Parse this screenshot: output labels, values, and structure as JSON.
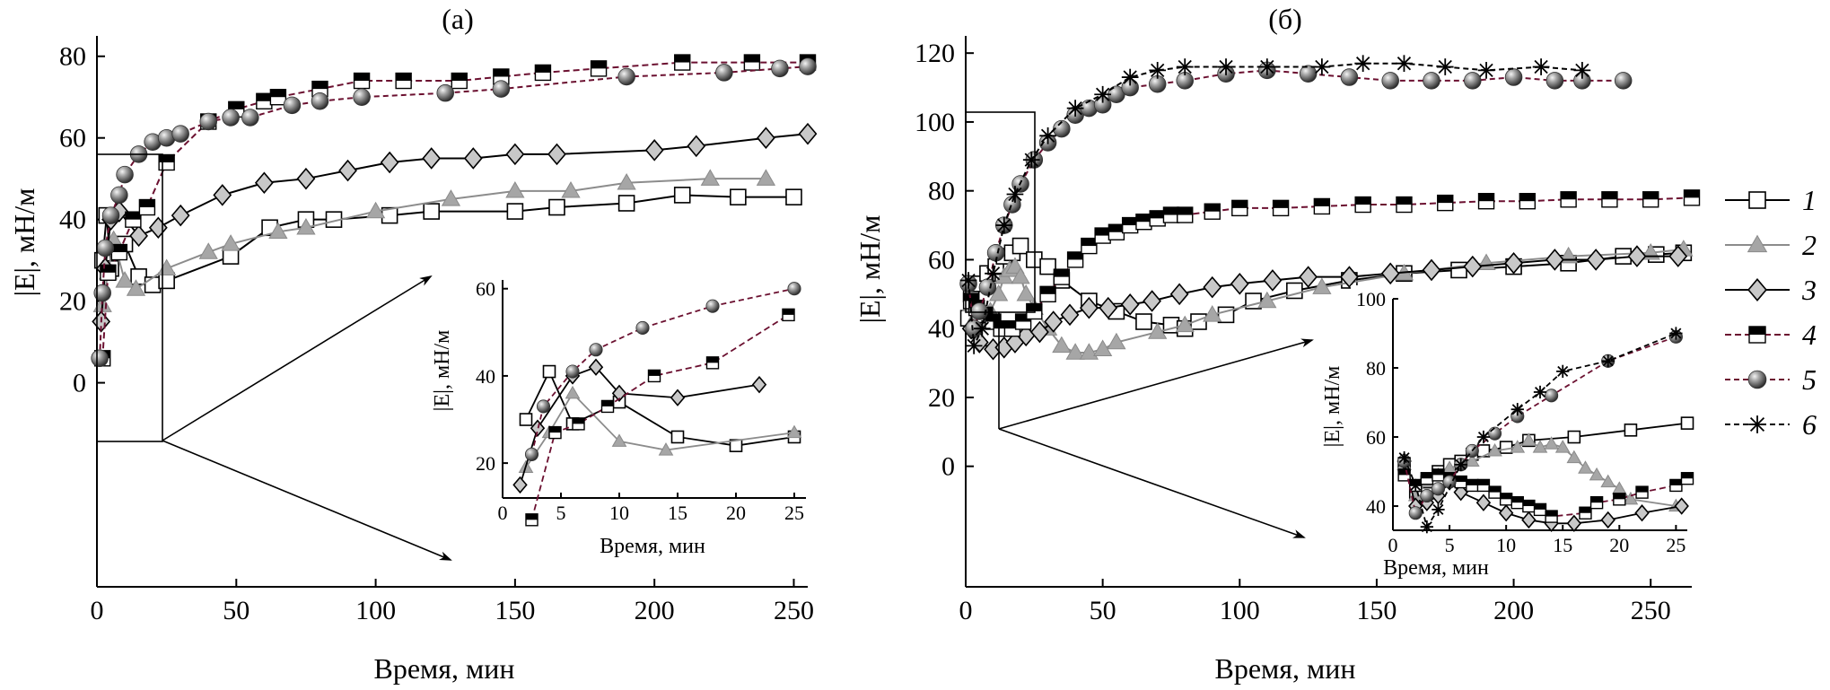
{
  "chart_data": [
    {
      "id": "a",
      "type": "scatter-line",
      "title": "(а)",
      "xlabel": "Время, мин",
      "ylabel": "|E|, мН/м",
      "xlim": [
        0,
        255
      ],
      "ylim": [
        -50,
        85
      ],
      "xticks": [
        0,
        50,
        100,
        150,
        200,
        250
      ],
      "yticks": [
        0,
        20,
        40,
        60,
        80
      ],
      "series": [
        {
          "name": "1",
          "x": [
            2,
            3.5,
            5,
            10,
            15,
            20,
            25,
            48,
            62,
            75,
            85,
            105,
            120,
            150,
            165,
            190,
            210,
            230,
            250
          ],
          "y": [
            30,
            41,
            28,
            34,
            26,
            24,
            25,
            31,
            38,
            40,
            40,
            41,
            42,
            42,
            43,
            44,
            46,
            45.5,
            45.5
          ]
        },
        {
          "name": "2",
          "x": [
            2,
            4,
            6,
            10,
            14,
            25,
            40,
            48,
            65,
            75,
            100,
            127,
            150,
            170,
            190,
            220,
            240
          ],
          "y": [
            19,
            27,
            35,
            25,
            23,
            28,
            32,
            34,
            37,
            38,
            42,
            45,
            47,
            47,
            49,
            50,
            50
          ]
        },
        {
          "name": "3",
          "x": [
            1.5,
            3,
            5,
            8,
            15,
            22,
            30,
            45,
            60,
            75,
            90,
            105,
            120,
            135,
            150,
            165,
            200,
            215,
            240,
            255
          ],
          "y": [
            15,
            28,
            40,
            42,
            36,
            38,
            41,
            46,
            49,
            50,
            52,
            54,
            55,
            55,
            56,
            56,
            57,
            58,
            60,
            61
          ]
        },
        {
          "name": "4",
          "x": [
            2,
            4,
            8,
            13,
            18,
            25,
            40,
            50,
            60,
            65,
            80,
            95,
            110,
            130,
            145,
            160,
            180,
            210,
            235,
            255
          ],
          "y": [
            6,
            27,
            32,
            40,
            43,
            54,
            64,
            67,
            69,
            70,
            72,
            74,
            74,
            74,
            75,
            76,
            77,
            78.5,
            78.5,
            78.5
          ]
        },
        {
          "name": "5",
          "x": [
            1,
            2,
            3,
            5,
            8,
            10,
            15,
            20,
            25,
            30,
            40,
            48,
            55,
            70,
            80,
            95,
            125,
            145,
            190,
            225,
            245,
            255
          ],
          "y": [
            6,
            22,
            33,
            41,
            46,
            51,
            56,
            59,
            60,
            61,
            64,
            65,
            65,
            68,
            69,
            70,
            71,
            72,
            75,
            76,
            77,
            77.5
          ]
        }
      ],
      "inset": {
        "xlabel": "Время, мин",
        "ylabel": "|E|, мН/м",
        "xlim": [
          0,
          26
        ],
        "ylim": [
          12,
          62
        ],
        "xticks": [
          0,
          5,
          10,
          15,
          20,
          25
        ],
        "yticks": [
          20,
          40,
          60
        ],
        "series": [
          {
            "name": "1",
            "x": [
              2,
              4,
              6,
              10,
              15,
              20,
              25
            ],
            "y": [
              30,
              41,
              29,
              34,
              26,
              24,
              26
            ]
          },
          {
            "name": "2",
            "x": [
              2,
              4,
              6,
              10,
              14,
              25
            ],
            "y": [
              19,
              27,
              36,
              25,
              23,
              27
            ]
          },
          {
            "name": "3",
            "x": [
              1.5,
              3,
              6,
              8,
              10,
              15,
              22
            ],
            "y": [
              15,
              28,
              40,
              42,
              36,
              35,
              38
            ]
          },
          {
            "name": "4",
            "x": [
              2.5,
              4.5,
              6.5,
              9,
              13,
              18,
              24.5
            ],
            "y": [
              7,
              27,
              29,
              33,
              40,
              43,
              54
            ]
          },
          {
            "name": "5",
            "x": [
              2.5,
              3.5,
              6,
              8,
              12,
              18,
              25
            ],
            "y": [
              22,
              33,
              41,
              46,
              51,
              56,
              60
            ]
          }
        ]
      }
    },
    {
      "id": "b",
      "type": "scatter-line",
      "title": "(б)",
      "xlabel": "Время, мин",
      "ylabel": "|E|, мН/м",
      "xlim": [
        0,
        265
      ],
      "ylim": [
        -35,
        125
      ],
      "xticks": [
        0,
        50,
        100,
        150,
        200,
        250
      ],
      "yticks": [
        0,
        20,
        40,
        60,
        80,
        100,
        120
      ],
      "series": [
        {
          "name": "1",
          "x": [
            1,
            2,
            5,
            8,
            11,
            14,
            17,
            20,
            25,
            30,
            35,
            45,
            55,
            65,
            75,
            80,
            85,
            95,
            105,
            120,
            140,
            160,
            180,
            200,
            220,
            240,
            252,
            262
          ],
          "y": [
            43,
            50,
            53,
            56,
            58,
            61,
            62,
            64,
            60,
            58,
            54,
            48,
            45,
            42,
            41,
            40,
            42,
            44,
            48,
            51,
            54,
            56,
            57,
            58,
            59,
            61,
            61.5,
            62
          ]
        },
        {
          "name": "2",
          "x": [
            2,
            4,
            6,
            9,
            12,
            14,
            16,
            18,
            20,
            22,
            25,
            30,
            35,
            40,
            45,
            50,
            55,
            70,
            80,
            90,
            110,
            130,
            160,
            190,
            220,
            250,
            262
          ],
          "y": [
            47,
            44,
            42,
            45,
            50,
            55,
            57,
            58,
            55,
            50,
            46,
            40,
            35,
            33,
            33,
            34,
            36,
            39,
            41,
            44,
            48,
            52,
            56,
            59,
            61,
            62,
            63
          ]
        },
        {
          "name": "3",
          "x": [
            2,
            5,
            10,
            14,
            18,
            22,
            27,
            32,
            38,
            45,
            52,
            60,
            68,
            78,
            90,
            100,
            112,
            125,
            140,
            155,
            170,
            185,
            200,
            215,
            230,
            245,
            260
          ],
          "y": [
            40,
            36,
            34,
            34.5,
            36,
            38,
            39,
            42,
            44,
            46,
            46,
            47,
            48,
            50,
            52,
            53,
            54,
            55,
            55,
            56,
            57,
            58,
            59,
            60,
            60,
            61,
            61
          ]
        },
        {
          "name": "4",
          "x": [
            2,
            4,
            7,
            10,
            13,
            17,
            21,
            25,
            30,
            35,
            40,
            45,
            50,
            55,
            60,
            65,
            70,
            75,
            80,
            90,
            100,
            115,
            130,
            145,
            160,
            175,
            190,
            205,
            220,
            235,
            250,
            265
          ],
          "y": [
            48,
            46,
            44,
            42,
            40,
            40,
            42,
            45,
            50,
            55,
            60,
            64,
            67,
            68,
            70,
            71,
            72,
            73,
            73,
            74,
            75,
            75,
            75.5,
            76,
            76,
            76.5,
            77,
            77,
            77.5,
            77.5,
            77.5,
            78
          ]
        },
        {
          "name": "5",
          "x": [
            1,
            3,
            5,
            8,
            11,
            14,
            17,
            20,
            25,
            30,
            35,
            40,
            45,
            50,
            55,
            60,
            70,
            80,
            95,
            110,
            125,
            140,
            155,
            170,
            185,
            200,
            215,
            225,
            240
          ],
          "y": [
            53,
            40,
            45,
            52,
            62,
            70,
            76,
            82,
            89,
            94,
            98,
            102,
            104,
            105,
            108,
            110,
            111,
            112,
            114,
            115,
            114,
            113,
            112,
            112,
            112,
            113,
            112,
            112,
            112
          ]
        },
        {
          "name": "6",
          "x": [
            1,
            3,
            6,
            10,
            14,
            18,
            24,
            30,
            40,
            50,
            60,
            70,
            80,
            95,
            110,
            130,
            145,
            160,
            175,
            190,
            210,
            225
          ],
          "y": [
            54,
            35,
            40,
            56,
            70,
            79,
            89,
            96,
            104,
            108,
            113,
            115,
            116,
            116,
            116,
            116,
            117,
            117,
            116,
            115,
            116,
            115
          ]
        }
      ],
      "inset": {
        "xlabel": "Время, мин",
        "ylabel": "|E|, мН/м",
        "xlim": [
          0,
          26
        ],
        "ylim": [
          33,
          100
        ],
        "xticks": [
          0,
          5,
          10,
          15,
          20,
          25
        ],
        "yticks": [
          40,
          60,
          80,
          100
        ],
        "series": [
          {
            "name": "1",
            "x": [
              1,
              2,
              3,
              4,
              5,
              6,
              7,
              8,
              10,
              12,
              16,
              21,
              26
            ],
            "y": [
              52,
              44,
              47,
              50,
              52,
              53,
              55,
              56,
              57,
              59,
              60,
              62,
              64
            ]
          },
          {
            "name": "2",
            "x": [
              1,
              2,
              3,
              4,
              5,
              7,
              9,
              11,
              12,
              13,
              14,
              15,
              16,
              17,
              18,
              19,
              20,
              21,
              25
            ],
            "y": [
              52,
              43,
              47,
              49,
              51,
              53,
              56,
              57,
              59,
              57,
              58,
              57,
              54,
              51,
              49,
              47,
              45,
              42,
              40
            ]
          },
          {
            "name": "3",
            "x": [
              1,
              2,
              3,
              4,
              5,
              6,
              8,
              10,
              12,
              14,
              16,
              19,
              22,
              25.5
            ],
            "y": [
              53,
              40,
              41,
              43,
              47,
              44,
              41,
              38,
              36,
              35,
              35,
              36,
              38,
              40
            ]
          },
          {
            "name": "4",
            "x": [
              1,
              2,
              3,
              4,
              5,
              6,
              7,
              8,
              9,
              10,
              11,
              12,
              13,
              14,
              17,
              18,
              20,
              22,
              25,
              26
            ],
            "y": [
              49,
              46,
              48,
              49,
              48,
              47,
              46,
              46,
              44,
              42,
              41,
              40,
              39,
              37,
              38,
              41,
              42,
              44,
              46,
              48
            ]
          },
          {
            "name": "5",
            "x": [
              1,
              2,
              3,
              4,
              5,
              6,
              7,
              9,
              11,
              14,
              19,
              25
            ],
            "y": [
              53,
              38,
              43,
              45,
              47,
              52,
              56,
              61,
              66,
              72,
              82,
              89
            ]
          },
          {
            "name": "6",
            "x": [
              1,
              2,
              3,
              4,
              6,
              8,
              11,
              13,
              15,
              19,
              25
            ],
            "y": [
              54,
              46,
              34,
              39,
              52,
              60,
              68,
              73,
              79,
              82,
              90
            ]
          }
        ]
      }
    }
  ],
  "legend": [
    {
      "name": "1",
      "marker": "square-open",
      "color": "#000000"
    },
    {
      "name": "2",
      "marker": "triangle",
      "color": "#8c8c8c"
    },
    {
      "name": "3",
      "marker": "diamond",
      "color": "#000000"
    },
    {
      "name": "4",
      "marker": "square-half",
      "color": "#6b1030"
    },
    {
      "name": "5",
      "marker": "sphere",
      "color": "#6b1030"
    },
    {
      "name": "6",
      "marker": "star",
      "color": "#000000"
    }
  ]
}
